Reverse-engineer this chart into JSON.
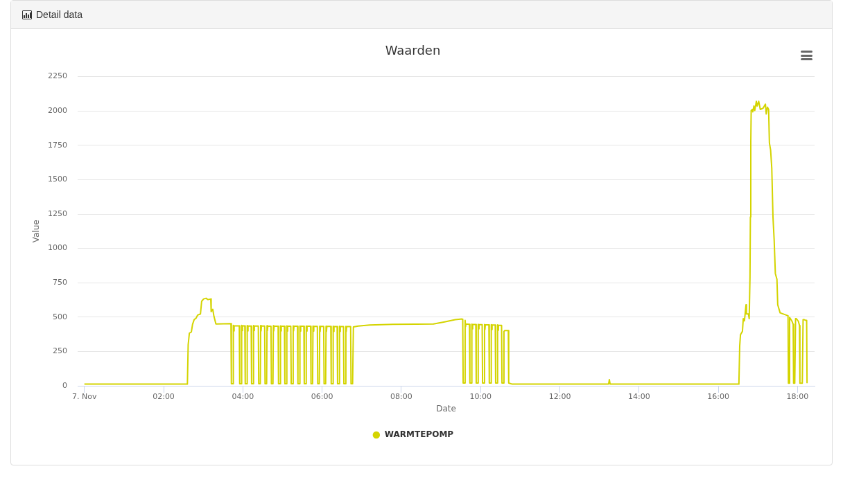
{
  "chart_data": {
    "type": "line",
    "title": "Waarden",
    "xlabel": "Date",
    "ylabel": "Value",
    "annotations": [
      "Detail data"
    ],
    "xlim": [
      -0.17,
      18.43
    ],
    "xticks": [
      {
        "value": 0,
        "label": "7. Nov"
      },
      {
        "value": 2,
        "label": "02:00"
      },
      {
        "value": 4,
        "label": "04:00"
      },
      {
        "value": 6,
        "label": "06:00"
      },
      {
        "value": 8,
        "label": "08:00"
      },
      {
        "value": 10,
        "label": "10:00"
      },
      {
        "value": 12,
        "label": "12:00"
      },
      {
        "value": 14,
        "label": "14:00"
      },
      {
        "value": 16,
        "label": "16:00"
      },
      {
        "value": 18,
        "label": "18:00"
      }
    ],
    "ylim": [
      0,
      2250
    ],
    "yticks": [
      0,
      250,
      500,
      750,
      1000,
      1250,
      1500,
      1750,
      2000,
      2250
    ],
    "grid": "y",
    "legend": "bottom",
    "x": [
      0,
      2.6,
      2.62,
      2.65,
      2.7,
      2.73,
      2.77,
      2.82,
      2.86,
      2.93,
      2.96,
      3.01,
      3.07,
      3.12,
      3.19,
      3.2,
      3.24,
      3.27,
      3.32,
      3.7,
      3.71,
      3.75,
      3.76,
      3.77,
      3.78,
      3.91,
      3.92,
      3.96,
      3.97,
      3.98,
      3.99,
      4.05,
      4.06,
      4.1,
      4.11,
      4.12,
      4.13,
      4.21,
      4.22,
      4.26,
      4.27,
      4.28,
      4.29,
      4.39,
      4.4,
      4.44,
      4.45,
      4.46,
      4.47,
      4.55,
      4.56,
      4.6,
      4.61,
      4.62,
      4.63,
      4.71,
      4.72,
      4.76,
      4.77,
      4.78,
      4.79,
      4.89,
      4.9,
      4.94,
      4.95,
      4.96,
      4.97,
      5.05,
      5.06,
      5.1,
      5.11,
      5.12,
      5.13,
      5.21,
      5.22,
      5.26,
      5.27,
      5.28,
      5.29,
      5.38,
      5.39,
      5.43,
      5.44,
      5.45,
      5.46,
      5.54,
      5.55,
      5.59,
      5.6,
      5.61,
      5.62,
      5.71,
      5.72,
      5.76,
      5.77,
      5.78,
      5.79,
      5.88,
      5.89,
      5.93,
      5.94,
      5.95,
      5.96,
      6.04,
      6.05,
      6.09,
      6.1,
      6.11,
      6.12,
      6.22,
      6.23,
      6.27,
      6.28,
      6.29,
      6.3,
      6.38,
      6.39,
      6.43,
      6.44,
      6.45,
      6.46,
      6.54,
      6.55,
      6.59,
      6.6,
      6.61,
      6.62,
      6.72,
      6.73,
      6.77,
      6.79,
      6.91,
      7.2,
      7.79,
      8.37,
      8.81,
      9.07,
      9.36,
      9.53,
      9.55,
      9.56,
      9.6,
      9.61,
      9.62,
      9.63,
      9.72,
      9.73,
      9.77,
      9.78,
      9.79,
      9.8,
      9.88,
      9.89,
      9.93,
      9.94,
      9.95,
      9.96,
      10.04,
      10.05,
      10.09,
      10.1,
      10.11,
      10.12,
      10.21,
      10.22,
      10.26,
      10.27,
      10.28,
      10.29,
      10.37,
      10.38,
      10.42,
      10.43,
      10.44,
      10.45,
      10.53,
      10.54,
      10.58,
      10.59,
      10.61,
      10.7,
      10.71,
      10.8,
      13.23,
      13.25,
      13.27,
      16.52,
      16.54,
      16.56,
      16.61,
      16.63,
      16.66,
      16.7,
      16.71,
      16.76,
      16.78,
      16.8,
      16.81,
      16.82,
      16.83,
      16.86,
      16.87,
      16.9,
      16.92,
      16.96,
      16.98,
      17.02,
      17.06,
      17.13,
      17.19,
      17.21,
      17.24,
      17.27,
      17.29,
      17.32,
      17.35,
      17.38,
      17.41,
      17.44,
      17.48,
      17.5,
      17.56,
      17.76,
      17.77,
      17.79,
      17.8,
      17.82,
      17.86,
      17.89,
      17.9,
      17.93,
      17.95,
      17.97,
      18.02,
      18.05,
      18.06,
      18.12,
      18.14,
      18.17,
      18.21,
      18.23,
      18.24
    ],
    "series": [
      {
        "name": "WARMTEPOMP",
        "color": "#d4d400",
        "values": [
          12,
          12,
          300,
          383,
          392,
          447,
          481,
          493,
          515,
          523,
          615,
          632,
          637,
          627,
          632,
          540,
          557,
          506,
          450,
          452,
          15,
          15,
          440,
          400,
          436,
          436,
          15,
          15,
          440,
          402,
          436,
          436,
          15,
          15,
          439,
          400,
          435,
          435,
          15,
          15,
          438,
          402,
          435,
          435,
          15,
          15,
          438,
          400,
          435,
          435,
          15,
          15,
          437,
          402,
          434,
          434,
          15,
          15,
          437,
          400,
          434,
          434,
          15,
          15,
          436,
          400,
          434,
          434,
          15,
          15,
          436,
          398,
          434,
          434,
          15,
          15,
          436,
          400,
          433,
          433,
          15,
          15,
          435,
          398,
          433,
          433,
          15,
          15,
          435,
          398,
          433,
          433,
          15,
          15,
          435,
          398,
          432,
          432,
          15,
          15,
          434,
          396,
          432,
          432,
          15,
          15,
          434,
          396,
          432,
          432,
          15,
          15,
          433,
          396,
          431,
          431,
          15,
          15,
          433,
          396,
          431,
          431,
          15,
          15,
          432,
          396,
          431,
          431,
          15,
          15,
          428,
          435,
          442,
          447,
          449,
          450,
          464,
          481,
          486,
          484,
          20,
          20,
          476,
          430,
          450,
          447,
          20,
          20,
          449,
          415,
          446,
          446,
          20,
          20,
          447,
          415,
          445,
          445,
          20,
          20,
          446,
          410,
          444,
          444,
          20,
          20,
          445,
          410,
          442,
          442,
          20,
          20,
          443,
          405,
          440,
          440,
          20,
          20,
          395,
          402,
          402,
          20,
          12,
          12,
          45,
          12,
          12,
          288,
          372,
          397,
          489,
          473,
          590,
          523,
          523,
          489,
          792,
          1229,
          1767,
          2003,
          2011,
          1994,
          2036,
          2003,
          2070,
          2036,
          2070,
          2011,
          2020,
          2050,
          1978,
          2028,
          2011,
          1767,
          1717,
          1583,
          1229,
          1061,
          817,
          775,
          590,
          531,
          510,
          19,
          19,
          498,
          489,
          470,
          447,
          19,
          19,
          489,
          489,
          470,
          439,
          19,
          19,
          481,
          481,
          476,
          476,
          19
        ]
      }
    ]
  }
}
